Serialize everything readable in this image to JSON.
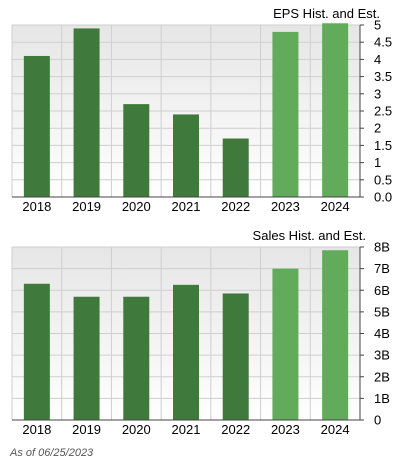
{
  "footnote": "As of 06/25/2023",
  "colors": {
    "hist_bar": "#3f7a3c",
    "est_bar": "#62ab5a",
    "grid": "#cfcfcf",
    "plot_bg_top": "#e6e6e6",
    "plot_bg_bottom": "#ffffff",
    "axis": "#444444",
    "text": "#000000"
  },
  "chart_data": [
    {
      "type": "bar",
      "title": "EPS Hist. and Est.",
      "categories": [
        "2018",
        "2019",
        "2020",
        "2021",
        "2022",
        "2023",
        "2024"
      ],
      "values": [
        4.1,
        4.9,
        2.7,
        2.4,
        1.7,
        4.8,
        5.05
      ],
      "estimate": [
        false,
        false,
        false,
        false,
        false,
        true,
        true
      ],
      "ylim": [
        0,
        5
      ],
      "yticks": [
        0,
        0.5,
        1,
        1.5,
        2,
        2.5,
        3,
        3.5,
        4,
        4.5,
        5
      ],
      "ytick_labels": [
        "0.0",
        "0.5",
        "1",
        "1.5",
        "2",
        "2.5",
        "3",
        "3.5",
        "4",
        "4.5",
        "5"
      ],
      "y_axis_side": "right",
      "grid": true
    },
    {
      "type": "bar",
      "title": "Sales Hist. and Est.",
      "categories": [
        "2018",
        "2019",
        "2020",
        "2021",
        "2022",
        "2023",
        "2024"
      ],
      "values": [
        6.3,
        5.7,
        5.7,
        6.25,
        5.85,
        7.0,
        7.85
      ],
      "estimate": [
        false,
        false,
        false,
        false,
        false,
        true,
        true
      ],
      "ylim": [
        0,
        8
      ],
      "yticks": [
        0,
        1,
        2,
        3,
        4,
        5,
        6,
        7,
        8
      ],
      "ytick_labels": [
        "0",
        "1B",
        "2B",
        "3B",
        "4B",
        "5B",
        "6B",
        "7B",
        "8B"
      ],
      "y_axis_side": "right",
      "grid": true
    }
  ]
}
